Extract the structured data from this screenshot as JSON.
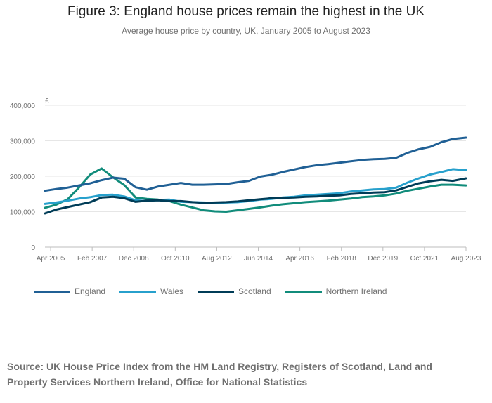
{
  "chart_data": {
    "type": "line",
    "title": "Figure 3: England house prices remain the highest in the UK",
    "subtitle": "Average house price by country, UK, January 2005 to August 2023",
    "ylabel": "£",
    "ylim": [
      0,
      400000
    ],
    "y_ticks": [
      "0",
      "100,000",
      "200,000",
      "300,000",
      "400,000"
    ],
    "x_ticks": [
      "Apr 2005",
      "Feb 2007",
      "Dec 2008",
      "Oct 2010",
      "Aug 2012",
      "Jun 2014",
      "Apr 2016",
      "Feb 2018",
      "Dec 2019",
      "Oct 2021",
      "Aug 2023"
    ],
    "grid": true,
    "legend_position": "bottom",
    "x": [
      "2005-01",
      "2005-07",
      "2006-01",
      "2006-07",
      "2007-01",
      "2007-07",
      "2008-01",
      "2008-07",
      "2009-01",
      "2009-07",
      "2010-01",
      "2010-07",
      "2011-01",
      "2011-07",
      "2012-01",
      "2012-07",
      "2013-01",
      "2013-07",
      "2014-01",
      "2014-07",
      "2015-01",
      "2015-07",
      "2016-01",
      "2016-07",
      "2017-01",
      "2017-07",
      "2018-01",
      "2018-07",
      "2019-01",
      "2019-07",
      "2020-01",
      "2020-07",
      "2021-01",
      "2021-07",
      "2022-01",
      "2022-07",
      "2023-01",
      "2023-08"
    ],
    "series": [
      {
        "name": "England",
        "color": "#206095",
        "values": [
          159000,
          164000,
          168000,
          174000,
          180000,
          189000,
          196000,
          193000,
          169000,
          162000,
          171000,
          176000,
          181000,
          176000,
          176000,
          177000,
          178000,
          183000,
          187000,
          199000,
          204000,
          212000,
          219000,
          226000,
          231000,
          234000,
          238000,
          242000,
          246000,
          248000,
          249000,
          252000,
          266000,
          276000,
          283000,
          296000,
          305000,
          309000
        ]
      },
      {
        "name": "Wales",
        "color": "#27a0cc",
        "values": [
          122000,
          126000,
          131000,
          137000,
          141000,
          147000,
          148000,
          143000,
          132000,
          130000,
          133000,
          134000,
          128000,
          127000,
          126000,
          125000,
          126000,
          127000,
          130000,
          134000,
          136000,
          140000,
          142000,
          146000,
          148000,
          150000,
          152000,
          157000,
          160000,
          163000,
          164000,
          168000,
          182000,
          194000,
          205000,
          212000,
          220000,
          217000
        ]
      },
      {
        "name": "Scotland",
        "color": "#003c57",
        "values": [
          95000,
          106000,
          113000,
          120000,
          127000,
          140000,
          142000,
          138000,
          128000,
          131000,
          132000,
          130000,
          130000,
          127000,
          125000,
          126000,
          127000,
          129000,
          132000,
          135000,
          138000,
          139000,
          140000,
          142000,
          143000,
          145000,
          146000,
          150000,
          152000,
          154000,
          155000,
          160000,
          170000,
          180000,
          186000,
          190000,
          187000,
          194000
        ]
      },
      {
        "name": "Northern Ireland",
        "color": "#118c7b",
        "values": [
          111000,
          120000,
          135000,
          168000,
          205000,
          222000,
          197000,
          175000,
          140000,
          136000,
          134000,
          130000,
          120000,
          112000,
          104000,
          101000,
          100000,
          104000,
          108000,
          112000,
          117000,
          121000,
          124000,
          127000,
          129000,
          131000,
          134000,
          137000,
          141000,
          143000,
          146000,
          151000,
          159000,
          165000,
          171000,
          176000,
          176000,
          174000
        ]
      }
    ],
    "source": "Source: UK House Price Index from the HM Land Registry, Registers of Scotland, Land and Property Services Northern Ireland, Office for National Statistics"
  }
}
